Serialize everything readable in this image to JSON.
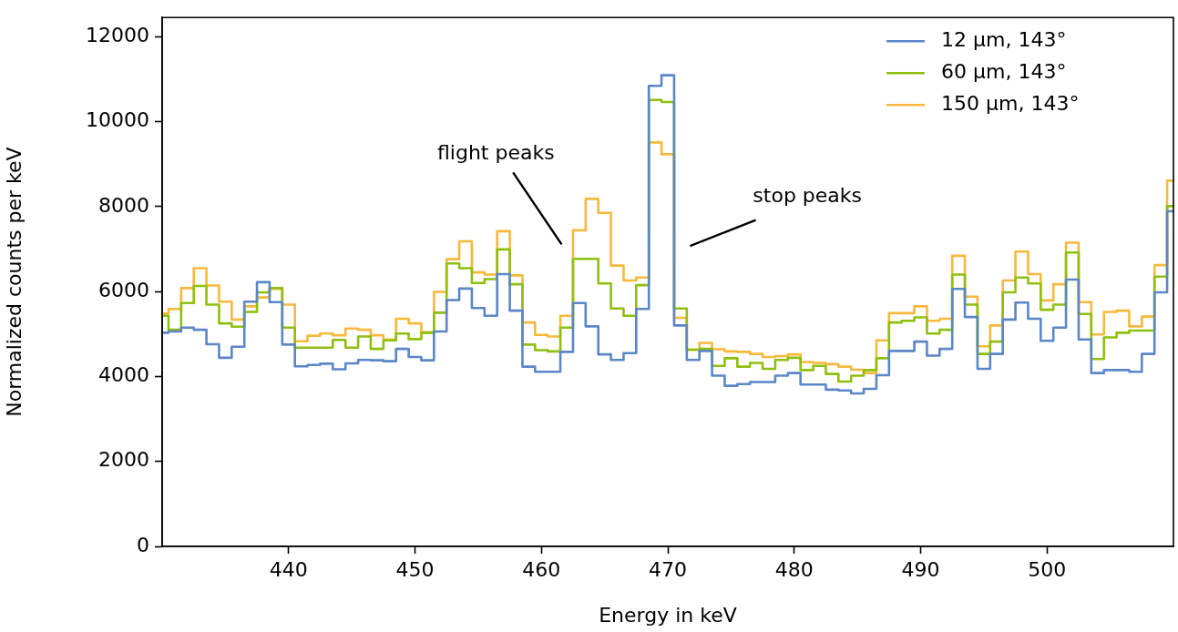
{
  "chart_data": {
    "type": "step",
    "xlabel": "Energy in keV",
    "ylabel": "Normalized counts per keV",
    "x": [
      430,
      431,
      432,
      433,
      434,
      435,
      436,
      437,
      438,
      439,
      440,
      441,
      442,
      443,
      444,
      445,
      446,
      447,
      448,
      449,
      450,
      451,
      452,
      453,
      454,
      455,
      456,
      457,
      458,
      459,
      460,
      461,
      462,
      463,
      464,
      465,
      466,
      467,
      468,
      469,
      470,
      471,
      472,
      473,
      474,
      475,
      476,
      477,
      478,
      479,
      480,
      481,
      482,
      483,
      484,
      485,
      486,
      487,
      488,
      489,
      490,
      491,
      492,
      493,
      494,
      495,
      496,
      497,
      498,
      499,
      500,
      501,
      502,
      503,
      504,
      505,
      506,
      507,
      508,
      509,
      510
    ],
    "xlim": [
      430,
      510
    ],
    "xticks": [
      440,
      450,
      460,
      470,
      480,
      490,
      500
    ],
    "ylim": [
      0,
      12450
    ],
    "yticks": [
      0,
      2000,
      4000,
      6000,
      8000,
      10000,
      12000
    ],
    "grid": false,
    "legend": "top right",
    "series": [
      {
        "name": "12 µm, 143°",
        "color": "#5b86c8",
        "values": [
          5030,
          5060,
          5150,
          5100,
          4760,
          4440,
          4700,
          5760,
          6220,
          5750,
          4750,
          4240,
          4270,
          4300,
          4170,
          4310,
          4390,
          4380,
          4360,
          4650,
          4460,
          4380,
          5060,
          5800,
          6070,
          5610,
          5430,
          6410,
          5550,
          4230,
          4110,
          4110,
          4580,
          5730,
          5180,
          4520,
          4390,
          4550,
          5590,
          10840,
          11090,
          5200,
          4390,
          4600,
          4020,
          3780,
          3820,
          3870,
          3870,
          4020,
          4080,
          3810,
          3810,
          3690,
          3670,
          3600,
          3710,
          4030,
          4600,
          4600,
          4820,
          4490,
          4650,
          6060,
          5400,
          4180,
          4530,
          5340,
          5740,
          5360,
          4840,
          5150,
          6280,
          4870,
          4080,
          4150,
          4150,
          4110,
          4530,
          5980,
          7890
        ]
      },
      {
        "name": "60 µm, 143°",
        "color": "#8fbf0f",
        "values": [
          5430,
          5100,
          5730,
          6130,
          5690,
          5250,
          5170,
          5520,
          5980,
          6080,
          5150,
          4680,
          4680,
          4680,
          4860,
          4680,
          4940,
          4650,
          4850,
          5010,
          4880,
          5030,
          5500,
          6660,
          6550,
          6200,
          6290,
          6990,
          6170,
          4750,
          4620,
          4590,
          5150,
          6770,
          6770,
          6190,
          5600,
          5430,
          6150,
          10510,
          10460,
          5600,
          4630,
          4650,
          4250,
          4430,
          4230,
          4320,
          4180,
          4390,
          4440,
          4150,
          4250,
          4060,
          3880,
          4020,
          4150,
          4430,
          5270,
          5310,
          5390,
          5010,
          5100,
          6400,
          5690,
          4530,
          4820,
          5980,
          6330,
          6190,
          5570,
          5690,
          6920,
          5470,
          4410,
          4920,
          5030,
          5080,
          5080,
          6350,
          8010
        ]
      },
      {
        "name": "150 µm, 143°",
        "color": "#f7b93c",
        "values": [
          5480,
          5590,
          6080,
          6550,
          6140,
          5760,
          5340,
          5650,
          5860,
          6060,
          5690,
          4830,
          4960,
          5010,
          4970,
          5130,
          5100,
          4970,
          4870,
          5360,
          5250,
          5040,
          5990,
          6760,
          7180,
          6450,
          6400,
          7420,
          6380,
          5270,
          4980,
          4940,
          5430,
          7440,
          8180,
          7850,
          6610,
          6260,
          6330,
          9510,
          9230,
          5380,
          4630,
          4790,
          4640,
          4590,
          4580,
          4530,
          4460,
          4480,
          4520,
          4340,
          4320,
          4290,
          4230,
          4160,
          4080,
          4850,
          5490,
          5490,
          5650,
          5310,
          5360,
          6840,
          5880,
          4710,
          5200,
          6260,
          6940,
          6410,
          5790,
          6170,
          7150,
          5750,
          4990,
          5520,
          5550,
          5180,
          5410,
          6620,
          8610
        ]
      }
    ],
    "annotations": [
      "flight peaks",
      "stop peaks"
    ]
  }
}
